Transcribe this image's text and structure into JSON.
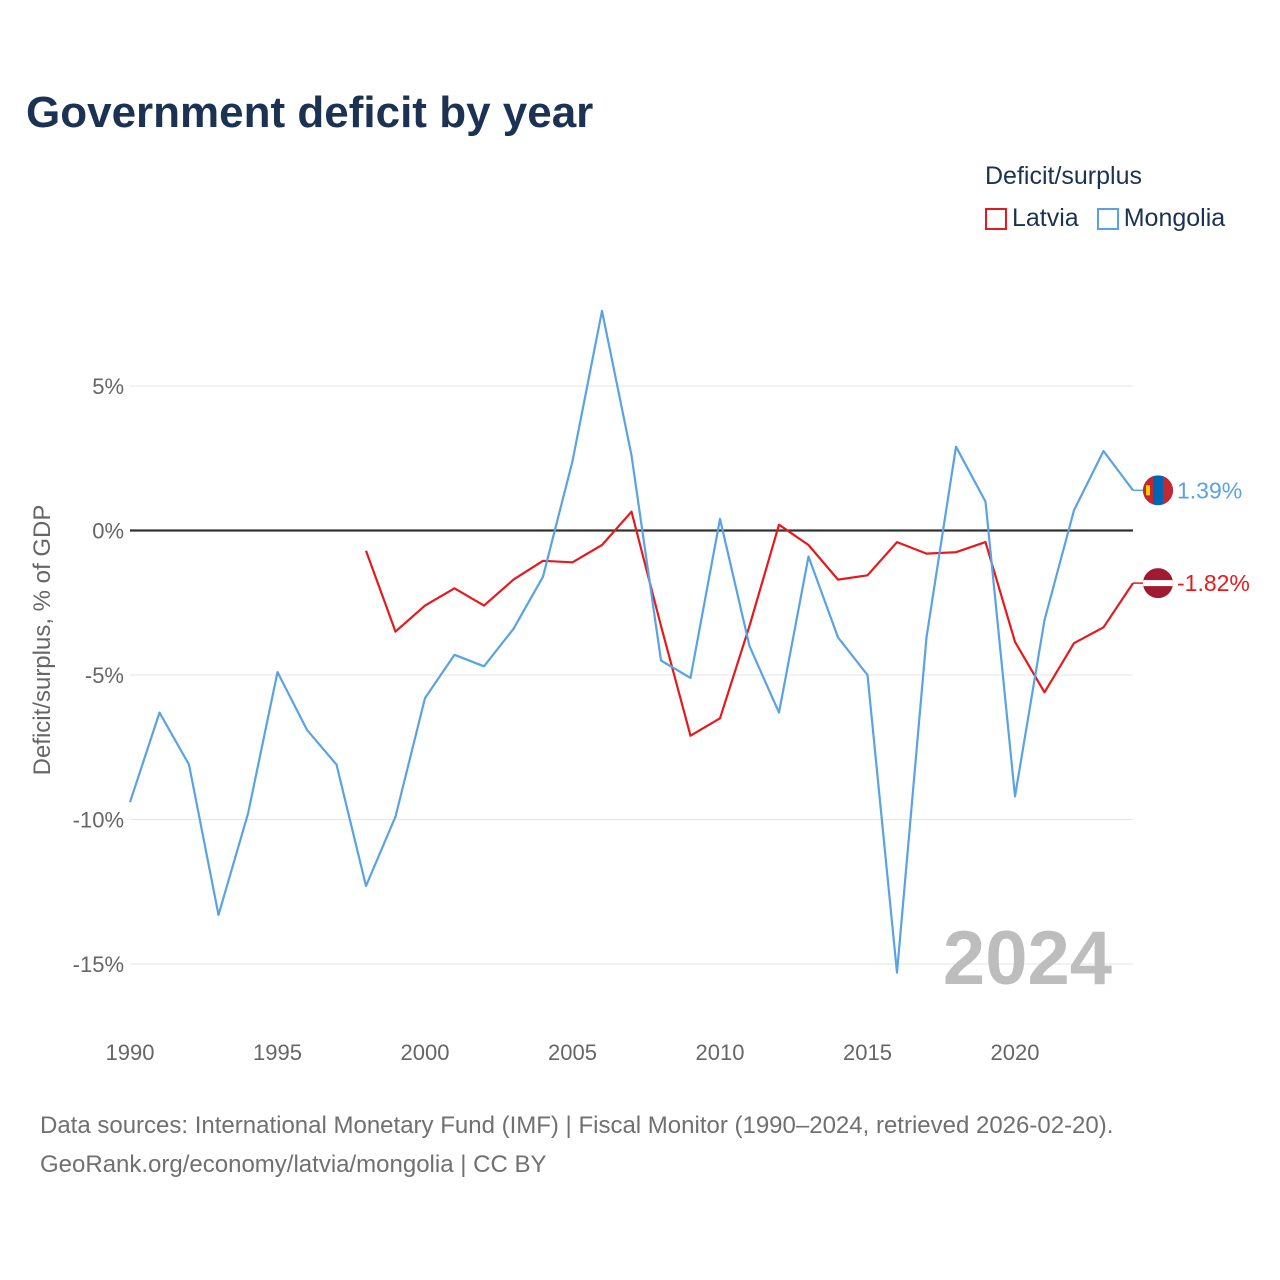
{
  "chart_data": {
    "type": "line",
    "title": "Government deficit by year",
    "xlabel": "",
    "ylabel": "Deficit/surplus, % of GDP",
    "legend_title": "Deficit/surplus",
    "legend_position": "top-right",
    "xlim": [
      1990,
      2024
    ],
    "ylim": [
      -17,
      8.5
    ],
    "x_ticks": [
      1990,
      1995,
      2000,
      2005,
      2010,
      2015,
      2020
    ],
    "y_ticks": [
      5,
      0,
      -5,
      -10,
      -15
    ],
    "y_tick_labels": [
      "5%",
      "0%",
      "-5%",
      "-10%",
      "-15%"
    ],
    "grid": true,
    "year_label": "2024",
    "series": [
      {
        "name": "Latvia",
        "color": "#e41a1c",
        "end_label": "-1.82%",
        "x": [
          1998,
          1999,
          2000,
          2001,
          2002,
          2003,
          2004,
          2005,
          2006,
          2007,
          2008,
          2009,
          2010,
          2011,
          2012,
          2013,
          2014,
          2015,
          2016,
          2017,
          2018,
          2019,
          2020,
          2021,
          2022,
          2023,
          2024
        ],
        "values": [
          -0.7,
          -3.5,
          -2.6,
          -2.0,
          -2.6,
          -1.7,
          -1.05,
          -1.1,
          -0.5,
          0.65,
          -3.3,
          -7.1,
          -6.5,
          -3.3,
          0.2,
          -0.5,
          -1.7,
          -1.55,
          -0.4,
          -0.8,
          -0.75,
          -0.4,
          -3.85,
          -5.6,
          -3.9,
          -3.35,
          -1.82
        ]
      },
      {
        "name": "Mongolia",
        "color": "#5aa2e3",
        "end_label": "1.39%",
        "x": [
          1990,
          1991,
          1992,
          1993,
          1994,
          1995,
          1996,
          1997,
          1998,
          1999,
          2000,
          2001,
          2002,
          2003,
          2004,
          2005,
          2006,
          2007,
          2008,
          2009,
          2010,
          2011,
          2012,
          2013,
          2014,
          2015,
          2016,
          2017,
          2018,
          2019,
          2020,
          2021,
          2022,
          2023,
          2024
        ],
        "values": [
          -9.4,
          -6.3,
          -8.1,
          -13.3,
          -9.8,
          -4.9,
          -6.9,
          -8.1,
          -12.3,
          -9.9,
          -5.8,
          -4.3,
          -4.7,
          -3.4,
          -1.6,
          2.4,
          7.6,
          2.6,
          -4.5,
          -5.1,
          0.4,
          -4.0,
          -6.3,
          -0.9,
          -3.7,
          -5.0,
          -15.3,
          -3.7,
          2.9,
          1.0,
          -9.2,
          -3.1,
          0.7,
          2.75,
          1.39
        ]
      }
    ]
  },
  "footer": {
    "line1": "Data sources: International Monetary Fund (IMF) | Fiscal Monitor (1990–2024, retrieved 2026-02-20).",
    "line2": "GeoRank.org/economy/latvia/mongolia | CC BY"
  }
}
